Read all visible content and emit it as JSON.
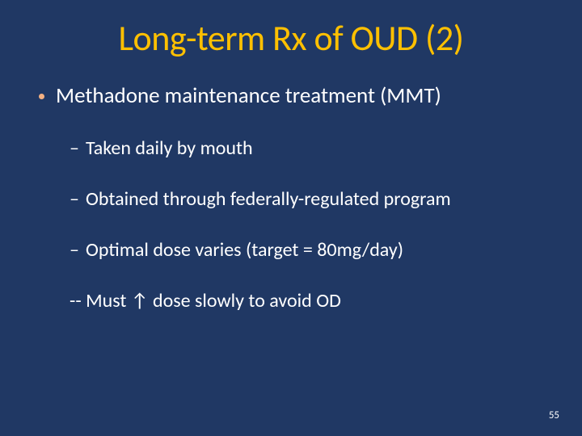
{
  "slide": {
    "background_color": "#203864",
    "title": {
      "text": "Long-term Rx of OUD (2)",
      "color": "#ffc000",
      "fontsize": 44
    },
    "body_text_color": "#ffffff",
    "bullet_dot_color": "#f4b183",
    "bullets": {
      "level1": {
        "text": "Methadone maintenance treatment (MMT)",
        "fontsize": 27
      },
      "level2": [
        {
          "text": "Taken daily by mouth",
          "fontsize": 24
        },
        {
          "text": "Obtained through federally-regulated program",
          "fontsize": 24
        },
        {
          "text": "Optimal dose varies (target = 80mg/day)",
          "fontsize": 24
        }
      ],
      "level2_plain": {
        "text": "-- Must ↑ dose slowly to avoid OD",
        "fontsize": 24
      }
    },
    "page_number": {
      "text": "55",
      "color": "#ffffff",
      "fontsize": 13
    }
  }
}
